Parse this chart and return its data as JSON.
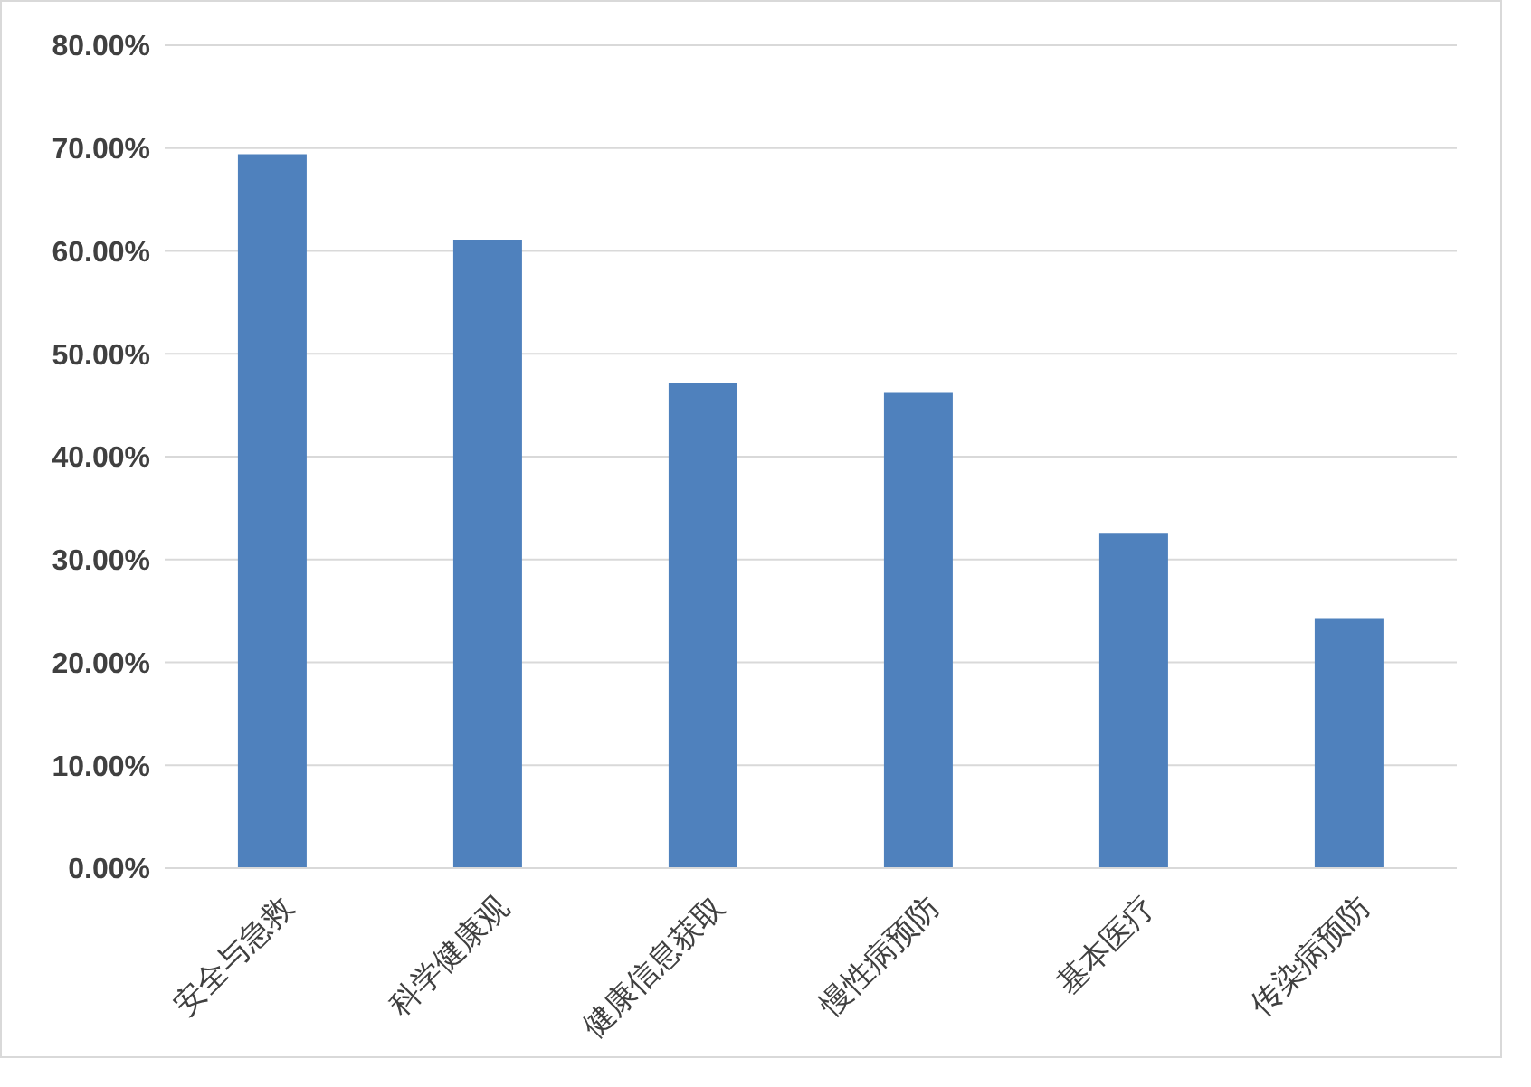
{
  "chart_data": {
    "type": "bar",
    "categories": [
      "安全与急救",
      "科学健康观",
      "健康信息获取",
      "慢性病预防",
      "基本医疗",
      "传染病预防"
    ],
    "values": [
      69.4,
      61.1,
      47.2,
      46.2,
      32.6,
      24.3
    ],
    "color": "#4f81bd",
    "ylim": [
      0,
      80
    ],
    "yticks": [
      {
        "value": 0,
        "label": "0.00%"
      },
      {
        "value": 10,
        "label": "10.00%"
      },
      {
        "value": 20,
        "label": "20.00%"
      },
      {
        "value": 30,
        "label": "30.00%"
      },
      {
        "value": 40,
        "label": "40.00%"
      },
      {
        "value": 50,
        "label": "50.00%"
      },
      {
        "value": 60,
        "label": "60.00%"
      },
      {
        "value": 70,
        "label": "70.00%"
      },
      {
        "value": 80,
        "label": "80.00%"
      }
    ],
    "grid": "y"
  }
}
